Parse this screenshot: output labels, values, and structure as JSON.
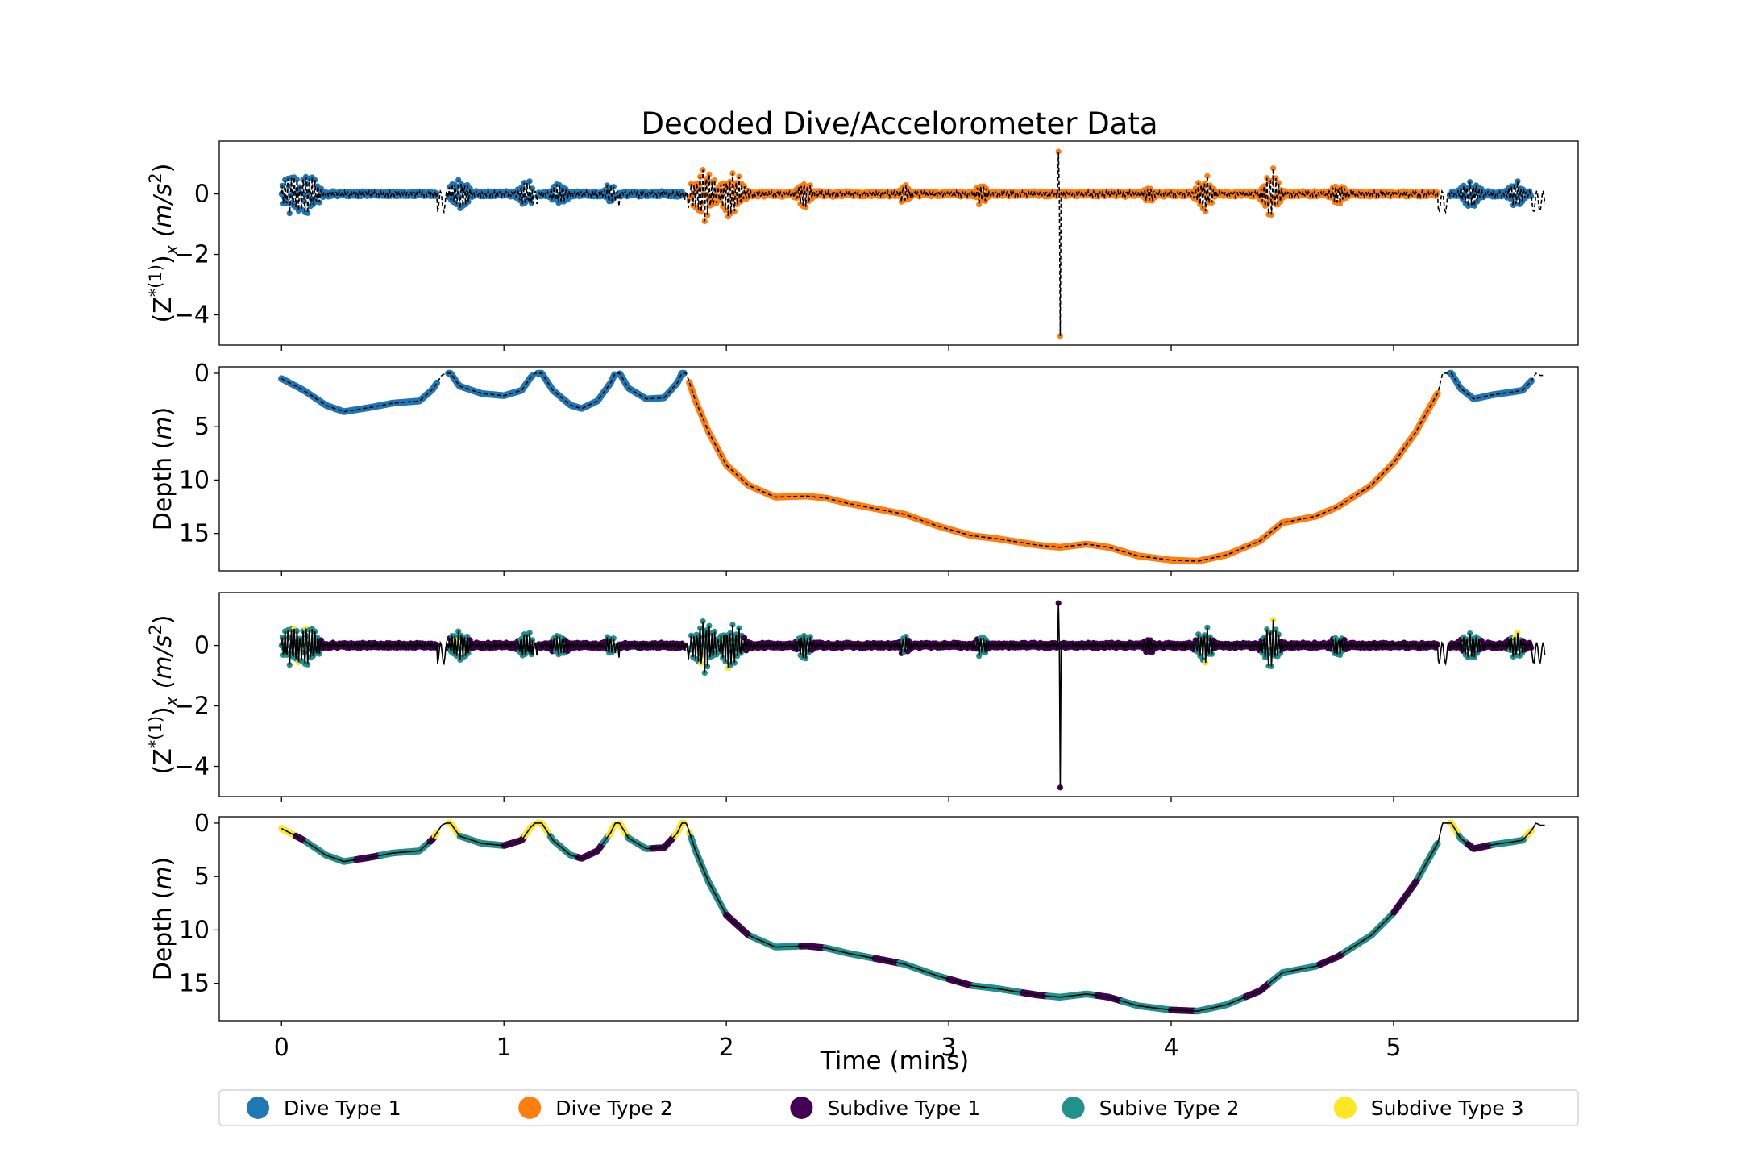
{
  "chart_data": {
    "type": "line",
    "title": "Decoded Dive/Accelorometer Data",
    "xlabel": "Time (mins)",
    "xlim": [
      -0.28,
      5.83
    ],
    "x_ticks": [
      "0",
      "1",
      "2",
      "3",
      "4",
      "5"
    ],
    "grid": false,
    "legend_placement": "bottom",
    "legend": [
      {
        "label": "Dive Type 1",
        "color": "#1f77b4"
      },
      {
        "label": "Dive Type 2",
        "color": "#ff7f0e"
      },
      {
        "label": "Subdive Type 1",
        "color": "#440154"
      },
      {
        "label": "Subive Type 2",
        "color": "#21918c"
      },
      {
        "label": "Subdive Type 3",
        "color": "#fde725"
      }
    ],
    "panels": [
      {
        "kind": "acceleration",
        "ylabel_main": "(Z",
        "ylabel_sup": "*(1)",
        "ylabel_sub": "x",
        "ylabel_units": " (m/s",
        "ylabel_units_sup": "2",
        "ylabel_end": ")",
        "ylim": [
          -5.0,
          1.75
        ],
        "y_ticks": [
          "−4",
          "−2",
          "0"
        ],
        "y_tick_values": [
          -4,
          -2,
          0
        ],
        "coloring": "dive"
      },
      {
        "kind": "depth",
        "ylabel_main": "Depth (",
        "ylabel_italic": "m",
        "ylabel_end": ")",
        "ylim": [
          18.5,
          -0.6
        ],
        "y_ticks": [
          "0",
          "5",
          "10",
          "15"
        ],
        "y_tick_values": [
          0,
          5,
          10,
          15
        ],
        "coloring": "dive"
      },
      {
        "kind": "acceleration",
        "ylabel_main": "(Z",
        "ylabel_sup": "*(1)",
        "ylabel_sub": "x",
        "ylabel_units": " (m/s",
        "ylabel_units_sup": "2",
        "ylabel_end": ")",
        "ylim": [
          -5.0,
          1.75
        ],
        "y_ticks": [
          "−4",
          "−2",
          "0"
        ],
        "y_tick_values": [
          -4,
          -2,
          0
        ],
        "coloring": "subdive"
      },
      {
        "kind": "depth",
        "ylabel_main": "Depth (",
        "ylabel_italic": "m",
        "ylabel_end": ")",
        "ylim": [
          18.5,
          -0.6
        ],
        "y_ticks": [
          "0",
          "5",
          "10",
          "15"
        ],
        "y_tick_values": [
          0,
          5,
          10,
          15
        ],
        "coloring": "subdive"
      }
    ],
    "depth_profile": [
      [
        0.0,
        0.5
      ],
      [
        0.1,
        1.6
      ],
      [
        0.2,
        3.0
      ],
      [
        0.28,
        3.6
      ],
      [
        0.4,
        3.2
      ],
      [
        0.5,
        2.8
      ],
      [
        0.62,
        2.6
      ],
      [
        0.68,
        1.5
      ],
      [
        0.72,
        0.2
      ],
      [
        0.74,
        0.0
      ],
      [
        0.76,
        0.0
      ],
      [
        0.8,
        1.2
      ],
      [
        0.9,
        1.9
      ],
      [
        1.0,
        2.1
      ],
      [
        1.08,
        1.6
      ],
      [
        1.12,
        0.4
      ],
      [
        1.14,
        0.0
      ],
      [
        1.17,
        0.0
      ],
      [
        1.22,
        1.6
      ],
      [
        1.3,
        3.0
      ],
      [
        1.35,
        3.3
      ],
      [
        1.42,
        2.6
      ],
      [
        1.48,
        0.9
      ],
      [
        1.5,
        0.0
      ],
      [
        1.52,
        0.0
      ],
      [
        1.56,
        1.4
      ],
      [
        1.64,
        2.4
      ],
      [
        1.72,
        2.3
      ],
      [
        1.78,
        0.9
      ],
      [
        1.8,
        0.0
      ],
      [
        1.82,
        0.0
      ],
      [
        1.86,
        2.5
      ],
      [
        1.92,
        5.5
      ],
      [
        2.0,
        8.6
      ],
      [
        2.1,
        10.5
      ],
      [
        2.22,
        11.6
      ],
      [
        2.36,
        11.5
      ],
      [
        2.45,
        11.7
      ],
      [
        2.55,
        12.2
      ],
      [
        2.7,
        12.8
      ],
      [
        2.8,
        13.2
      ],
      [
        2.95,
        14.3
      ],
      [
        3.1,
        15.2
      ],
      [
        3.22,
        15.5
      ],
      [
        3.4,
        16.1
      ],
      [
        3.5,
        16.3
      ],
      [
        3.62,
        16.0
      ],
      [
        3.72,
        16.3
      ],
      [
        3.85,
        17.1
      ],
      [
        4.0,
        17.5
      ],
      [
        4.12,
        17.6
      ],
      [
        4.25,
        17.0
      ],
      [
        4.4,
        15.7
      ],
      [
        4.5,
        14.0
      ],
      [
        4.65,
        13.4
      ],
      [
        4.75,
        12.5
      ],
      [
        4.9,
        10.5
      ],
      [
        5.0,
        8.4
      ],
      [
        5.1,
        5.5
      ],
      [
        5.2,
        1.8
      ],
      [
        5.22,
        0.0
      ],
      [
        5.26,
        0.0
      ],
      [
        5.3,
        1.4
      ],
      [
        5.36,
        2.4
      ],
      [
        5.45,
        2.0
      ],
      [
        5.52,
        1.8
      ],
      [
        5.58,
        1.6
      ],
      [
        5.62,
        0.7
      ],
      [
        5.64,
        0.0
      ],
      [
        5.66,
        0.2
      ]
    ],
    "dive_segments": [
      {
        "start": 0.0,
        "end": 0.7,
        "type": 1
      },
      {
        "start": 0.75,
        "end": 1.13,
        "type": 1
      },
      {
        "start": 1.15,
        "end": 1.5,
        "type": 1
      },
      {
        "start": 1.52,
        "end": 1.81,
        "type": 1
      },
      {
        "start": 1.83,
        "end": 5.2,
        "type": 2
      },
      {
        "start": 5.25,
        "end": 5.62,
        "type": 1
      }
    ],
    "gap_intervals": [
      [
        0.7,
        0.75
      ],
      [
        1.13,
        1.15
      ],
      [
        1.5,
        1.52
      ],
      [
        1.81,
        1.83
      ],
      [
        5.2,
        5.25
      ],
      [
        5.62,
        5.68
      ]
    ],
    "activity_bursts": [
      {
        "t": 0.05,
        "amp": 0.75,
        "w": 0.06
      },
      {
        "t": 0.12,
        "amp": 0.85,
        "w": 0.05
      },
      {
        "t": 0.8,
        "amp": 0.6,
        "w": 0.05
      },
      {
        "t": 1.1,
        "amp": 0.55,
        "w": 0.04
      },
      {
        "t": 1.25,
        "amp": 0.45,
        "w": 0.04
      },
      {
        "t": 1.48,
        "amp": 0.45,
        "w": 0.03
      },
      {
        "t": 1.9,
        "amp": 0.95,
        "w": 0.06
      },
      {
        "t": 2.02,
        "amp": 0.85,
        "w": 0.06
      },
      {
        "t": 2.35,
        "amp": 0.5,
        "w": 0.04
      },
      {
        "t": 2.8,
        "amp": 0.35,
        "w": 0.03
      },
      {
        "t": 3.15,
        "amp": 0.45,
        "w": 0.03
      },
      {
        "t": 3.9,
        "amp": 0.3,
        "w": 0.03
      },
      {
        "t": 4.15,
        "amp": 0.7,
        "w": 0.04
      },
      {
        "t": 4.45,
        "amp": 0.95,
        "w": 0.04
      },
      {
        "t": 4.75,
        "amp": 0.4,
        "w": 0.04
      },
      {
        "t": 5.35,
        "amp": 0.5,
        "w": 0.05
      },
      {
        "t": 5.55,
        "amp": 0.5,
        "w": 0.04
      }
    ],
    "spike": {
      "t": 3.5,
      "min": -4.7,
      "max": 1.4
    }
  }
}
